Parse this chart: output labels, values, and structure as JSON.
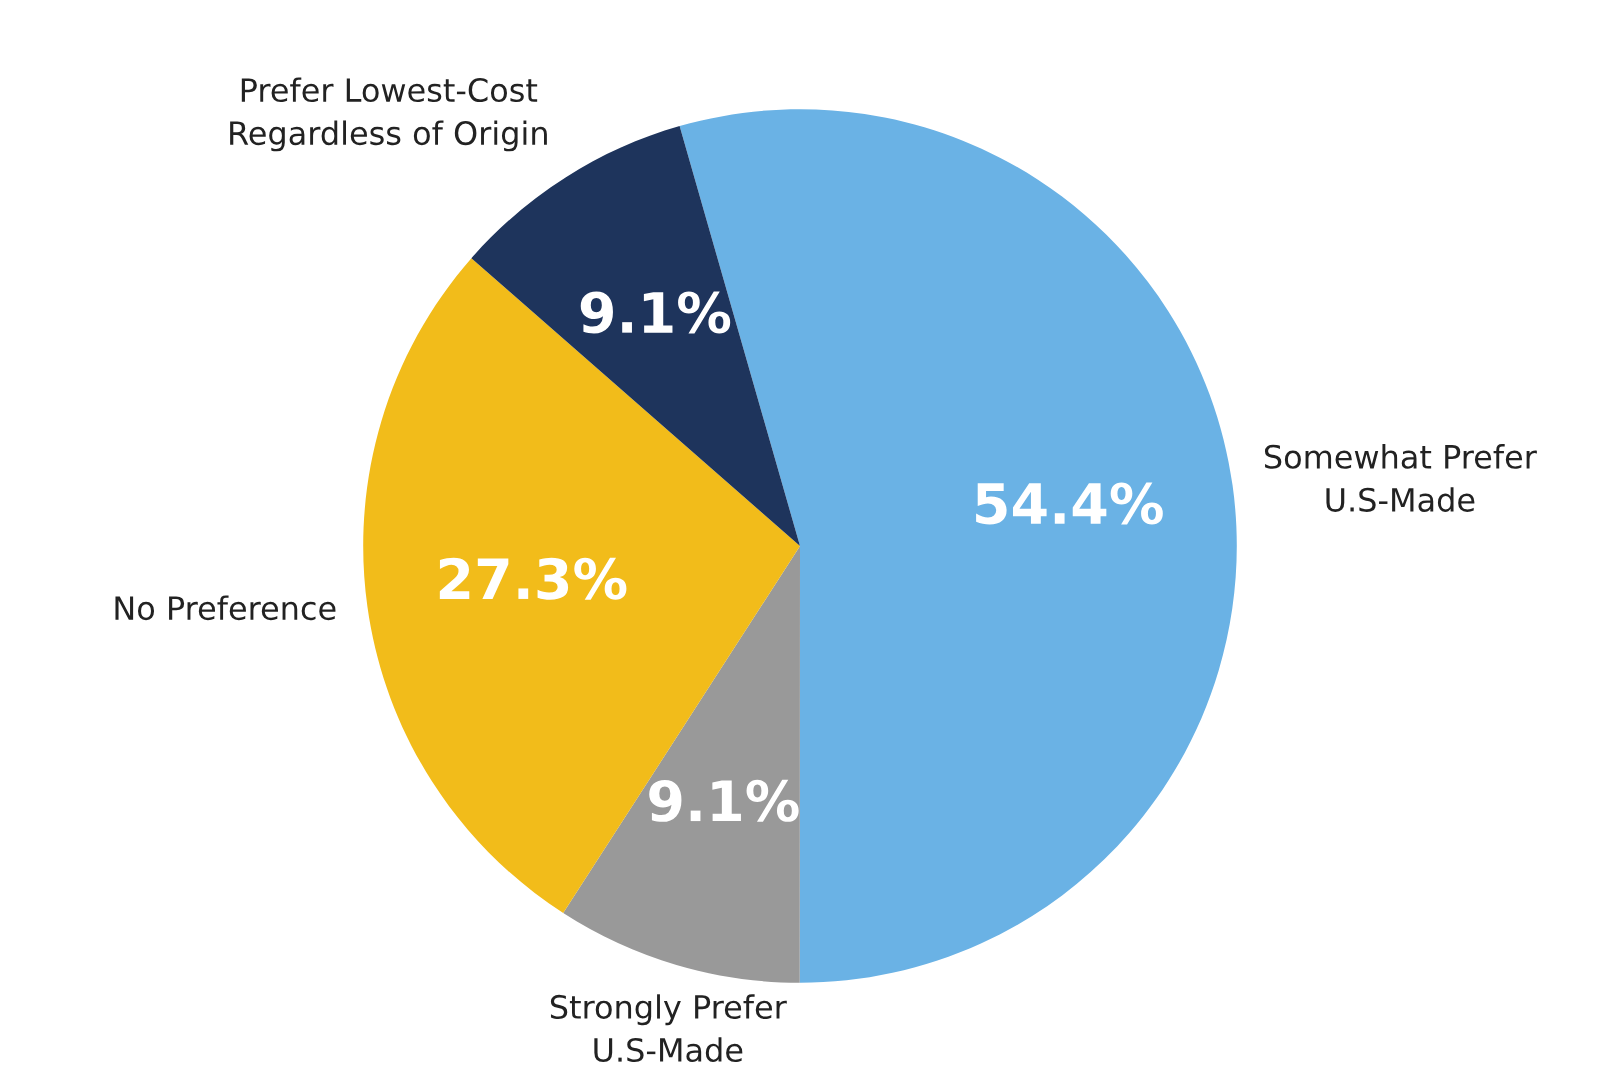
{
  "chart_data": {
    "type": "pie",
    "categories": [
      "Somewhat Prefer\nU.S-Made",
      "Strongly Prefer\nU.S-Made",
      "No Preference",
      "Prefer Lowest-Cost\nRegardless of Origin"
    ],
    "values": [
      54.4,
      9.1,
      27.3,
      9.1
    ],
    "colors": [
      "#6ab2e5",
      "#999999",
      "#f2bc1a",
      "#1e345c"
    ],
    "value_labels": [
      "54.4%",
      "9.1%",
      "27.3%",
      "9.1%"
    ]
  }
}
